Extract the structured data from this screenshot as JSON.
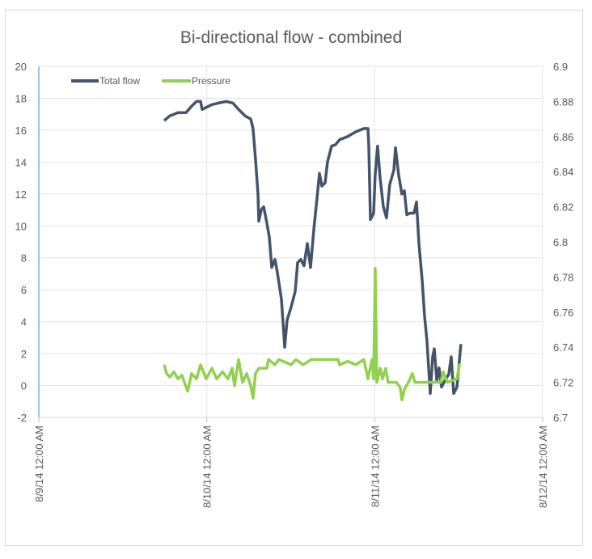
{
  "chart_data": {
    "type": "line",
    "title": "Bi-directional flow - combined",
    "legend_position": "top-left",
    "grid": true,
    "x_ticks": [
      "8/9/14 12:00 AM",
      "8/10/14 12:00 AM",
      "8/11/14 12:00 AM",
      "8/12/14 12:00 AM"
    ],
    "xlim": [
      "2014-08-09 00:00",
      "2014-08-12 00:00"
    ],
    "y_left": {
      "ylim": [
        -2,
        20
      ],
      "ticks": [
        "-2",
        "0",
        "2",
        "4",
        "6",
        "8",
        "10",
        "12",
        "14",
        "16",
        "18",
        "20"
      ]
    },
    "y_right": {
      "ylim": [
        6.7,
        6.9
      ],
      "ticks": [
        "6.7",
        "6.72",
        "6.74",
        "6.76",
        "6.78",
        "6.8",
        "6.82",
        "6.84",
        "6.86",
        "6.88",
        "6.9"
      ]
    },
    "series": [
      {
        "name": "Total flow",
        "axis": "left",
        "color": "#44546a",
        "points": [
          [
            "2014-08-09 17:55",
            16.6
          ],
          [
            "2014-08-09 18:43",
            16.9
          ],
          [
            "2014-08-09 19:53",
            17.1
          ],
          [
            "2014-08-09 21:02",
            17.1
          ],
          [
            "2014-08-09 21:50",
            17.5
          ],
          [
            "2014-08-09 22:32",
            17.8
          ],
          [
            "2014-08-09 23:07",
            17.8
          ],
          [
            "2014-08-09 23:21",
            17.3
          ],
          [
            "2014-08-09 23:48",
            17.4
          ],
          [
            "2014-08-10 00:44",
            17.6
          ],
          [
            "2014-08-10 01:39",
            17.7
          ],
          [
            "2014-08-10 02:49",
            17.8
          ],
          [
            "2014-08-10 03:44",
            17.7
          ],
          [
            "2014-08-10 04:33",
            17.3
          ],
          [
            "2014-08-10 05:28",
            16.9
          ],
          [
            "2014-08-10 06:17",
            16.7
          ],
          [
            "2014-08-10 06:37",
            16.1
          ],
          [
            "2014-08-10 06:58",
            14.2
          ],
          [
            "2014-08-10 07:19",
            12.0
          ],
          [
            "2014-08-10 07:26",
            10.3
          ],
          [
            "2014-08-10 07:47",
            11.0
          ],
          [
            "2014-08-10 08:08",
            11.2
          ],
          [
            "2014-08-10 08:35",
            10.2
          ],
          [
            "2014-08-10 08:56",
            9.3
          ],
          [
            "2014-08-10 09:17",
            7.4
          ],
          [
            "2014-08-10 09:45",
            7.9
          ],
          [
            "2014-08-10 10:05",
            7.1
          ],
          [
            "2014-08-10 10:40",
            5.4
          ],
          [
            "2014-08-10 11:08",
            2.4
          ],
          [
            "2014-08-10 11:29",
            4.1
          ],
          [
            "2014-08-10 12:03",
            4.9
          ],
          [
            "2014-08-10 12:38",
            5.9
          ],
          [
            "2014-08-10 12:59",
            7.7
          ],
          [
            "2014-08-10 13:26",
            7.9
          ],
          [
            "2014-08-10 13:54",
            7.5
          ],
          [
            "2014-08-10 14:22",
            8.9
          ],
          [
            "2014-08-10 14:50",
            7.4
          ],
          [
            "2014-08-10 15:17",
            9.7
          ],
          [
            "2014-08-10 15:45",
            11.7
          ],
          [
            "2014-08-10 16:06",
            13.3
          ],
          [
            "2014-08-10 16:27",
            12.5
          ],
          [
            "2014-08-10 16:55",
            12.7
          ],
          [
            "2014-08-10 17:15",
            14.0
          ],
          [
            "2014-08-10 17:50",
            15.0
          ],
          [
            "2014-08-10 18:25",
            15.1
          ],
          [
            "2014-08-10 18:59",
            15.4
          ],
          [
            "2014-08-10 20:08",
            15.6
          ],
          [
            "2014-08-10 21:18",
            15.9
          ],
          [
            "2014-08-10 22:27",
            16.1
          ],
          [
            "2014-08-10 23:02",
            16.1
          ],
          [
            "2014-08-10 23:09",
            15.0
          ],
          [
            "2014-08-10 23:23",
            10.4
          ],
          [
            "2014-08-10 23:51",
            10.8
          ],
          [
            "2014-08-11 00:04",
            13.2
          ],
          [
            "2014-08-11 00:25",
            15.0
          ],
          [
            "2014-08-11 00:46",
            13.0
          ],
          [
            "2014-08-11 01:14",
            11.2
          ],
          [
            "2014-08-11 01:41",
            10.5
          ],
          [
            "2014-08-11 02:09",
            12.6
          ],
          [
            "2014-08-11 02:44",
            13.5
          ],
          [
            "2014-08-11 02:58",
            14.9
          ],
          [
            "2014-08-11 03:25",
            13.2
          ],
          [
            "2014-08-11 03:53",
            12.0
          ],
          [
            "2014-08-11 04:14",
            12.2
          ],
          [
            "2014-08-11 04:35",
            10.7
          ],
          [
            "2014-08-11 05:02",
            10.8
          ],
          [
            "2014-08-11 05:37",
            10.8
          ],
          [
            "2014-08-11 05:58",
            11.5
          ],
          [
            "2014-08-11 06:19",
            8.9
          ],
          [
            "2014-08-11 06:47",
            6.6
          ],
          [
            "2014-08-11 07:07",
            4.4
          ],
          [
            "2014-08-11 07:28",
            2.8
          ],
          [
            "2014-08-11 07:56",
            -0.5
          ],
          [
            "2014-08-11 08:17",
            1.8
          ],
          [
            "2014-08-11 08:31",
            2.3
          ],
          [
            "2014-08-11 08:52",
            0.3
          ],
          [
            "2014-08-11 09:12",
            1.1
          ],
          [
            "2014-08-11 09:33",
            -0.1
          ],
          [
            "2014-08-11 10:01",
            0.3
          ],
          [
            "2014-08-11 10:35",
            0.7
          ],
          [
            "2014-08-11 10:56",
            1.8
          ],
          [
            "2014-08-11 11:17",
            -0.5
          ],
          [
            "2014-08-11 11:45",
            -0.1
          ],
          [
            "2014-08-11 12:19",
            2.6
          ]
        ]
      },
      {
        "name": "Pressure",
        "axis": "right",
        "color": "#92d050",
        "points": [
          [
            "2014-08-09 17:55",
            6.73
          ],
          [
            "2014-08-09 18:16",
            6.725
          ],
          [
            "2014-08-09 18:43",
            6.723
          ],
          [
            "2014-08-09 19:18",
            6.726
          ],
          [
            "2014-08-09 19:53",
            6.722
          ],
          [
            "2014-08-09 20:27",
            6.724
          ],
          [
            "2014-08-09 21:16",
            6.715
          ],
          [
            "2014-08-09 21:50",
            6.725
          ],
          [
            "2014-08-09 22:32",
            6.722
          ],
          [
            "2014-08-09 23:07",
            6.73
          ],
          [
            "2014-08-09 23:55",
            6.722
          ],
          [
            "2014-08-10 00:44",
            6.728
          ],
          [
            "2014-08-10 01:25",
            6.722
          ],
          [
            "2014-08-10 02:14",
            6.726
          ],
          [
            "2014-08-10 03:02",
            6.722
          ],
          [
            "2014-08-10 03:37",
            6.728
          ],
          [
            "2014-08-10 03:58",
            6.718
          ],
          [
            "2014-08-10 04:33",
            6.733
          ],
          [
            "2014-08-10 05:07",
            6.72
          ],
          [
            "2014-08-10 05:42",
            6.725
          ],
          [
            "2014-08-10 06:17",
            6.718
          ],
          [
            "2014-08-10 06:37",
            6.711
          ],
          [
            "2014-08-10 06:58",
            6.725
          ],
          [
            "2014-08-10 07:26",
            6.728
          ],
          [
            "2014-08-10 08:35",
            6.728
          ],
          [
            "2014-08-10 08:49",
            6.733
          ],
          [
            "2014-08-10 09:45",
            6.73
          ],
          [
            "2014-08-10 10:19",
            6.733
          ],
          [
            "2014-08-10 12:03",
            6.73
          ],
          [
            "2014-08-10 12:45",
            6.733
          ],
          [
            "2014-08-10 13:47",
            6.73
          ],
          [
            "2014-08-10 14:57",
            6.733
          ],
          [
            "2014-08-10 18:45",
            6.733
          ],
          [
            "2014-08-10 18:59",
            6.73
          ],
          [
            "2014-08-10 20:08",
            6.732
          ],
          [
            "2014-08-10 21:18",
            6.73
          ],
          [
            "2014-08-10 22:27",
            6.733
          ],
          [
            "2014-08-10 23:02",
            6.722
          ],
          [
            "2014-08-10 23:37",
            6.733
          ],
          [
            "2014-08-10 23:51",
            6.722
          ],
          [
            "2014-08-11 00:04",
            6.785
          ],
          [
            "2014-08-11 00:18",
            6.72
          ],
          [
            "2014-08-11 00:46",
            6.728
          ],
          [
            "2014-08-11 01:07",
            6.722
          ],
          [
            "2014-08-11 01:34",
            6.728
          ],
          [
            "2014-08-11 01:55",
            6.72
          ],
          [
            "2014-08-11 03:05",
            6.72
          ],
          [
            "2014-08-11 03:39",
            6.717
          ],
          [
            "2014-08-11 03:53",
            6.71
          ],
          [
            "2014-08-11 04:14",
            6.716
          ],
          [
            "2014-08-11 04:49",
            6.72
          ],
          [
            "2014-08-11 05:23",
            6.725
          ],
          [
            "2014-08-11 05:44",
            6.72
          ],
          [
            "2014-08-11 07:42",
            6.72
          ],
          [
            "2014-08-11 09:26",
            6.72
          ],
          [
            "2014-08-11 09:47",
            6.726
          ],
          [
            "2014-08-11 10:22",
            6.72
          ],
          [
            "2014-08-11 11:45",
            6.722
          ],
          [
            "2014-08-11 12:05",
            6.73
          ],
          [
            "2014-08-11 12:19",
            6.73
          ]
        ]
      }
    ]
  }
}
